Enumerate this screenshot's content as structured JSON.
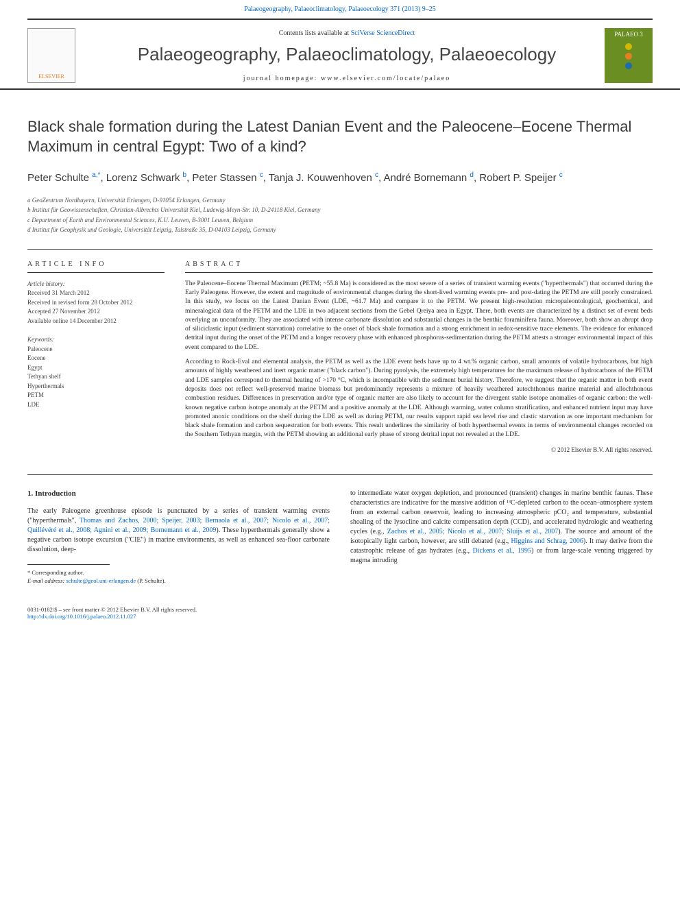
{
  "header": {
    "citation": "Palaeogeography, Palaeoclimatology, Palaeoecology 371 (2013) 9–25",
    "contents_prefix": "Contents lists available at ",
    "contents_link": "SciVerse ScienceDirect",
    "journal_title": "Palaeogeography, Palaeoclimatology, Palaeoecology",
    "homepage_label": "journal homepage: www.elsevier.com/locate/palaeo",
    "elsevier_label": "ELSEVIER",
    "palaeo_label": "PALAEO 3",
    "palaeo_dot_colors": [
      "#d4b800",
      "#e67e22",
      "#1f6da8"
    ]
  },
  "article": {
    "title": "Black shale formation during the Latest Danian Event and the Paleocene–Eocene Thermal Maximum in central Egypt: Two of a kind?",
    "authors_html": "Peter Schulte <sup>a,*</sup>, Lorenz Schwark <sup>b</sup>, Peter Stassen <sup>c</sup>, Tanja J. Kouwenhoven <sup>c</sup>, André Bornemann <sup>d</sup>, Robert P. Speijer <sup>c</sup>",
    "affiliations": [
      "a GeoZentrum Nordbayern, Universität Erlangen, D-91054 Erlangen, Germany",
      "b Institut für Geowissenschaften, Christian-Albrechts Universität Kiel, Ludewig-Meyn-Str. 10, D-24118 Kiel, Germany",
      "c Department of Earth and Environmental Sciences, K.U. Leuven, B-3001 Leuven, Belgium",
      "d Institut für Geophysik und Geologie, Universität Leipzig, Talstraße 35, D-04103 Leipzig, Germany"
    ]
  },
  "info": {
    "heading": "ARTICLE INFO",
    "history_label": "Article history:",
    "history": [
      "Received 31 March 2012",
      "Received in revised form 28 October 2012",
      "Accepted 27 November 2012",
      "Available online 14 December 2012"
    ],
    "keywords_label": "Keywords:",
    "keywords": [
      "Paleocene",
      "Eocene",
      "Egypt",
      "Tethyan shelf",
      "Hyperthermals",
      "PETM",
      "LDE"
    ]
  },
  "abstract": {
    "heading": "ABSTRACT",
    "p1": "The Paleocene–Eocene Thermal Maximum (PETM; ~55.8 Ma) is considered as the most severe of a series of transient warming events (\"hyperthermals\") that occurred during the Early Paleogene. However, the extent and magnitude of environmental changes during the short-lived warming events pre- and post-dating the PETM are still poorly constrained. In this study, we focus on the Latest Danian Event (LDE, ~61.7 Ma) and compare it to the PETM. We present high-resolution micropaleontological, geochemical, and mineralogical data of the PETM and the LDE in two adjacent sections from the Gebel Qreiya area in Egypt. There, both events are characterized by a distinct set of event beds overlying an unconformity. They are associated with intense carbonate dissolution and substantial changes in the benthic foraminifera fauna. Moreover, both show an abrupt drop of siliciclastic input (sediment starvation) correlative to the onset of black shale formation and a strong enrichment in redox-sensitive trace elements. The evidence for enhanced detrital input during the onset of the PETM and a longer recovery phase with enhanced phosphorus-sedimentation during the PETM attests a stronger environmental impact of this event compared to the LDE.",
    "p2": "According to Rock-Eval and elemental analysis, the PETM as well as the LDE event beds have up to 4 wt.% organic carbon, small amounts of volatile hydrocarbons, but high amounts of highly weathered and inert organic matter (\"black carbon\"). During pyrolysis, the extremely high temperatures for the maximum release of hydrocarbons of the PETM and LDE samples correspond to thermal heating of >170 °C, which is incompatible with the sediment burial history. Therefore, we suggest that the organic matter in both event deposits does not reflect well-preserved marine biomass but predominantly represents a mixture of heavily weathered autochthonous marine material and allochthonous combustion residues. Differences in preservation and/or type of organic matter are also likely to account for the divergent stable isotope anomalies of organic carbon: the well-known negative carbon isotope anomaly at the PETM and a positive anomaly at the LDE. Although warming, water column stratification, and enhanced nutrient input may have promoted anoxic conditions on the shelf during the LDE as well as during PETM, our results support rapid sea level rise and clastic starvation as one important mechanism for black shale formation and carbon sequestration for both events. This result underlines the similarity of both hyperthermal events in terms of environmental changes recorded on the Southern Tethyan margin, with the PETM showing an additional early phase of strong detrital input not revealed at the LDE.",
    "copyright": "© 2012 Elsevier B.V. All rights reserved."
  },
  "intro": {
    "heading": "1. Introduction",
    "left_text_pre": "The early Paleogene greenhouse episode is punctuated by a series of transient warming events (\"hyperthermals\", ",
    "left_refs": "Thomas and Zachos, 2000; Speijer, 2003; Bernaola et al., 2007; Nicolo et al., 2007; Quillévéré et al., 2008; Agnini et al., 2009; Bornemann et al., 2009",
    "left_text_post": "). These hyperthermals generally show a negative carbon isotope excursion (\"CIE\") in marine environments, as well as enhanced sea-floor carbonate dissolution, deep-",
    "right_text_1": "to intermediate water oxygen depletion, and pronounced (transient) changes in marine benthic faunas. These characteristics are indicative for the massive addition of ¹³C-depleted carbon to the ocean–atmosphere system from an external carbon reservoir, leading to increasing atmospheric pCO₂ and temperature, substantial shoaling of the lysocline and calcite compensation depth (CCD), and accelerated hydrologic and weathering cycles (e.g., ",
    "right_refs_1": "Zachos et al., 2005; Nicolo et al., 2007; Sluijs et al., 2007",
    "right_text_2": "). The source and amount of the isotopically light carbon, however, are still debated (e.g., ",
    "right_refs_2": "Higgins and Schrag, 2006",
    "right_text_3": "). It may derive from the catastrophic release of gas hydrates (e.g., ",
    "right_refs_3": "Dickens et al., 1995",
    "right_text_4": ") or from large-scale venting triggered by magma intruding"
  },
  "footnotes": {
    "corr": "* Corresponding author.",
    "email_label": "E-mail address: ",
    "email": "schulte@geol.uni-erlangen.de",
    "email_suffix": " (P. Schulte)."
  },
  "footer": {
    "issn": "0031-0182/$ – see front matter © 2012 Elsevier B.V. All rights reserved.",
    "doi": "http://dx.doi.org/10.1016/j.palaeo.2012.11.027"
  },
  "colors": {
    "link": "#0066cc",
    "text": "#2a2a2a",
    "palaeo_bg": "#6b8e23"
  }
}
